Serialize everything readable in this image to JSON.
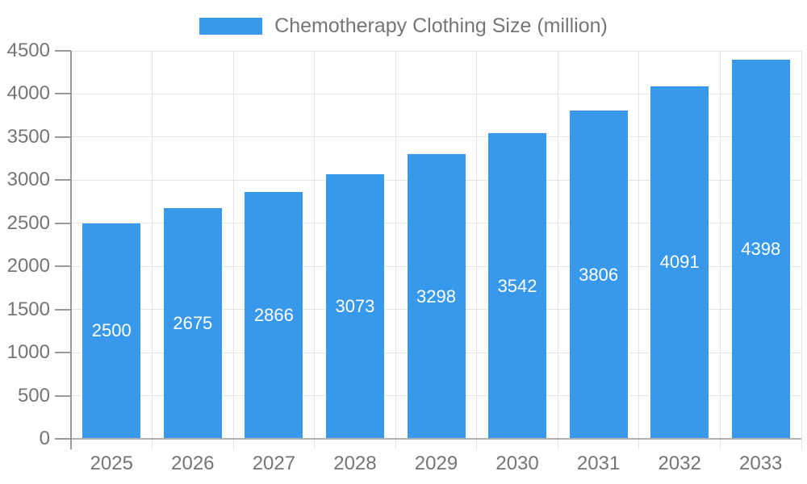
{
  "chart_data": {
    "type": "bar",
    "title": "Chemotherapy Clothing Size (million)",
    "legend": {
      "label": "Chemotherapy Clothing Size (million)",
      "position": "top"
    },
    "categories": [
      "2025",
      "2026",
      "2027",
      "2028",
      "2029",
      "2030",
      "2031",
      "2032",
      "2033"
    ],
    "values": [
      2500,
      2675,
      2866,
      3073,
      3298,
      3542,
      3806,
      4091,
      4398
    ],
    "xlabel": "",
    "ylabel": "",
    "ylim": [
      0,
      4500
    ],
    "ytick_step": 500,
    "grid": true,
    "value_labels": "white text centered inside bars"
  },
  "colors": {
    "bar": "#3899EC",
    "grid": "#E4E4E4",
    "axis_line": "#999999",
    "baseline": "#B0B0B0",
    "tick_text": "#757575",
    "legend_text": "#757575",
    "value_label": "#FFFFFF",
    "background": "#FFFFFF"
  }
}
